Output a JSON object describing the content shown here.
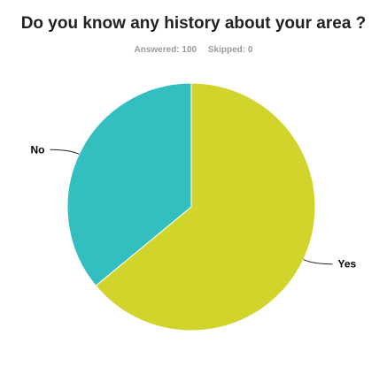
{
  "title": "Do you know any history about your area ?",
  "stats": {
    "answered_label": "Answered:",
    "answered_value": "100",
    "skipped_label": "Skipped:",
    "skipped_value": "0"
  },
  "chart_data": {
    "type": "pie",
    "title": "Do you know any history about your area ?",
    "slices": [
      {
        "label": "Yes",
        "value": 64,
        "color": "#d1d52b"
      },
      {
        "label": "No",
        "value": 36,
        "color": "#33bfc0"
      }
    ],
    "start": "12 o'clock, clockwise",
    "legend": "none (labels outside slices)"
  }
}
